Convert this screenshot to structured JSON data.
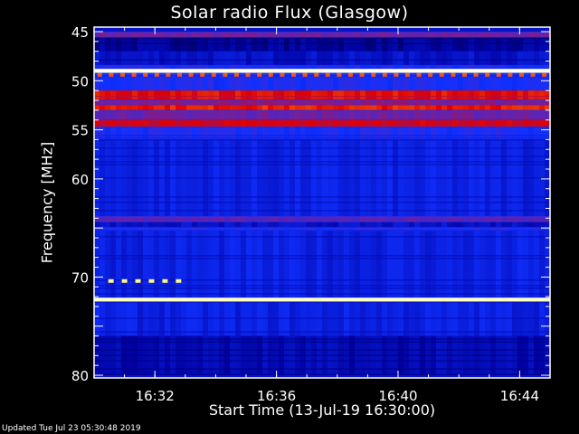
{
  "chart_data": {
    "type": "heatmap",
    "title": "Solar radio Flux (Glasgow)",
    "xlabel": "Start Time (13-Jul-19 16:30:00)",
    "ylabel": "Frequency [MHz]",
    "xlim": [
      "16:30",
      "16:45"
    ],
    "ylim": [
      45,
      80
    ],
    "y_inverted": true,
    "x_ticks": [
      "16:32",
      "16:36",
      "16:40",
      "16:44"
    ],
    "y_ticks": [
      45,
      50,
      55,
      60,
      70,
      80
    ],
    "colormap": [
      "#000000",
      "#0000a0",
      "#1030ff",
      "#7020a0",
      "#e00000",
      "#ffa020",
      "#ffff80",
      "#ffffff"
    ],
    "bands": [
      {
        "f0": 45.0,
        "f1": 45.6,
        "level": 0.42
      },
      {
        "f0": 45.6,
        "f1": 47.0,
        "level": 0.14
      },
      {
        "f0": 47.0,
        "f1": 48.4,
        "level": 0.2
      },
      {
        "f0": 48.4,
        "f1": 48.8,
        "level": 0.3
      },
      {
        "f0": 48.8,
        "f1": 49.2,
        "level": 0.98
      },
      {
        "f0": 49.2,
        "f1": 49.7,
        "level": 0.3
      },
      {
        "f0": 49.7,
        "f1": 51.0,
        "level": 0.3
      },
      {
        "f0": 51.0,
        "f1": 51.9,
        "level": 0.58
      },
      {
        "f0": 51.9,
        "f1": 52.5,
        "level": 0.45
      },
      {
        "f0": 52.5,
        "f1": 53.0,
        "level": 0.6
      },
      {
        "f0": 53.0,
        "f1": 54.0,
        "level": 0.42
      },
      {
        "f0": 54.0,
        "f1": 54.7,
        "level": 0.55
      },
      {
        "f0": 54.7,
        "f1": 56.0,
        "level": 0.3
      },
      {
        "f0": 56.0,
        "f1": 63.8,
        "level": 0.24
      },
      {
        "f0": 63.8,
        "f1": 64.4,
        "level": 0.4
      },
      {
        "f0": 64.4,
        "f1": 64.9,
        "level": 0.2
      },
      {
        "f0": 64.9,
        "f1": 65.3,
        "level": 0.32
      },
      {
        "f0": 65.3,
        "f1": 72.1,
        "level": 0.24
      },
      {
        "f0": 72.1,
        "f1": 72.5,
        "level": 0.95
      },
      {
        "f0": 72.5,
        "f1": 76.0,
        "level": 0.24
      },
      {
        "f0": 76.0,
        "f1": 80.0,
        "level": 0.17
      }
    ],
    "dotted_lines": [
      {
        "freq": 49.4,
        "t_start": "16:30",
        "t_end": "16:45",
        "level": 0.65,
        "count": 40
      },
      {
        "freq": 70.4,
        "t_start": "16:30:20",
        "t_end": "16:33:00",
        "level": 0.85,
        "count": 6
      }
    ]
  },
  "footer": {
    "updated": "Updated Tue Jul 23 05:30:48 2019"
  }
}
